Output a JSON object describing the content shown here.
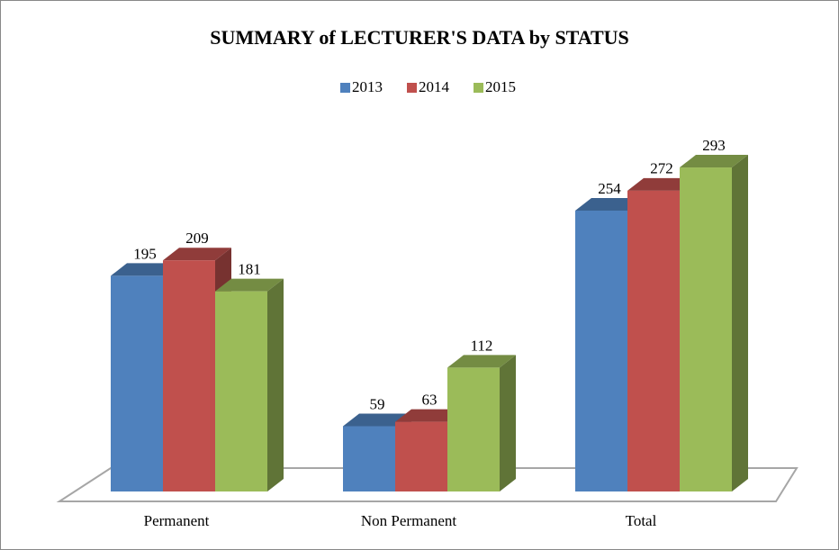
{
  "chart_data": {
    "type": "bar3d",
    "title": "SUMMARY of LECTURER'S DATA by STATUS",
    "categories": [
      "Permanent",
      "Non Permanent",
      "Total"
    ],
    "series": [
      {
        "name": "2013",
        "color": "#4f81bd",
        "values": [
          195,
          59,
          254
        ]
      },
      {
        "name": "2014",
        "color": "#c0504d",
        "values": [
          209,
          63,
          272
        ]
      },
      {
        "name": "2015",
        "color": "#9bbb59",
        "values": [
          181,
          112,
          293
        ]
      }
    ],
    "ylim": [
      0,
      350
    ],
    "legend": "top"
  }
}
